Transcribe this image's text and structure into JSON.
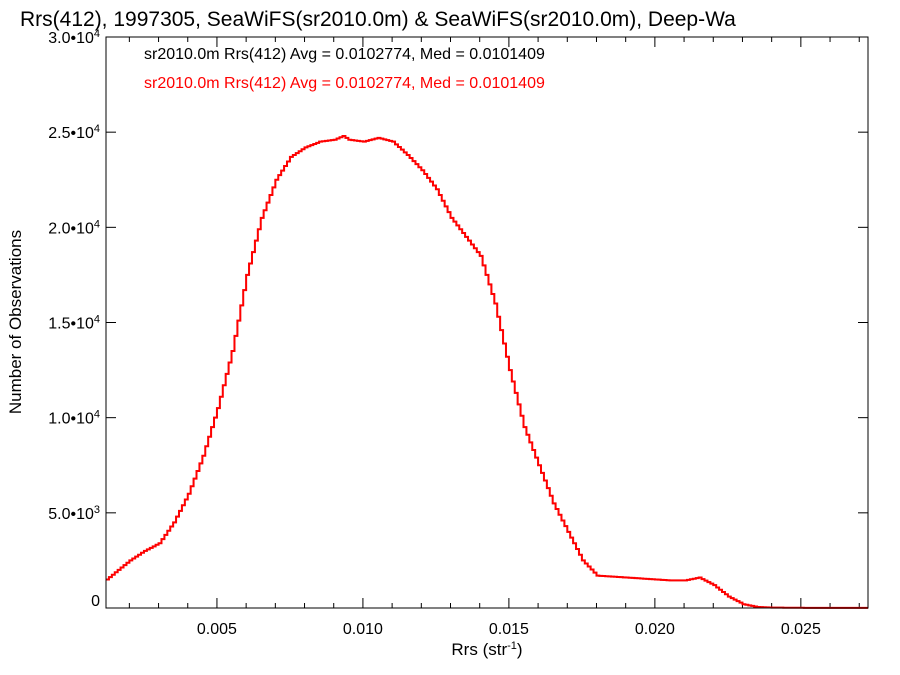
{
  "chart_data": {
    "type": "line",
    "title": "Rrs(412), 1997305, SeaWiFS(sr2010.0m) & SeaWiFS(sr2010.0m), Deep-Wa",
    "xlabel": {
      "base": "Rrs (str",
      "sup": "-1",
      "close": ")"
    },
    "ylabel": "Number of Observations",
    "xlim": [
      0.0012,
      0.0273
    ],
    "ylim": [
      0,
      30000
    ],
    "x_ticks": [
      {
        "value": 0.005,
        "label": "0.005"
      },
      {
        "value": 0.01,
        "label": "0.010"
      },
      {
        "value": 0.015,
        "label": "0.015"
      },
      {
        "value": 0.02,
        "label": "0.020"
      },
      {
        "value": 0.025,
        "label": "0.025"
      }
    ],
    "y_ticks": [
      {
        "value": 0,
        "label": "0",
        "exp": ""
      },
      {
        "value": 5000,
        "label": "5.0•10",
        "exp": "3"
      },
      {
        "value": 10000,
        "label": "1.0•10",
        "exp": "4"
      },
      {
        "value": 15000,
        "label": "1.5•10",
        "exp": "4"
      },
      {
        "value": 20000,
        "label": "2.0•10",
        "exp": "4"
      },
      {
        "value": 25000,
        "label": "2.5•10",
        "exp": "4"
      },
      {
        "value": 30000,
        "label": "3.0•10",
        "exp": "4"
      }
    ],
    "grid": false,
    "legend_position": "top-left",
    "series": [
      {
        "label": "sr2010.0m Rrs(412) Avg = 0.0102774, Med = 0.0101409",
        "color": "#000000",
        "x": [
          0.0012,
          0.002,
          0.0025,
          0.003,
          0.0035,
          0.004,
          0.0045,
          0.005,
          0.0055,
          0.006,
          0.0065,
          0.007,
          0.0075,
          0.008,
          0.0085,
          0.009,
          0.0093,
          0.0095,
          0.01,
          0.0105,
          0.011,
          0.0115,
          0.012,
          0.0125,
          0.013,
          0.0135,
          0.014,
          0.0145,
          0.015,
          0.0155,
          0.016,
          0.0165,
          0.017,
          0.0175,
          0.018,
          0.0185,
          0.019,
          0.0195,
          0.02,
          0.0205,
          0.021,
          0.0215,
          0.022,
          0.0225,
          0.023,
          0.0235,
          0.024,
          0.025,
          0.026,
          0.0273
        ],
        "y": [
          1500,
          2500,
          3000,
          3400,
          4500,
          6000,
          8000,
          10500,
          13500,
          17500,
          20500,
          22500,
          23700,
          24200,
          24500,
          24600,
          24800,
          24600,
          24500,
          24700,
          24500,
          23800,
          23000,
          22000,
          20500,
          19500,
          18500,
          16000,
          12500,
          9500,
          7500,
          5500,
          4000,
          2500,
          1700,
          1650,
          1600,
          1550,
          1500,
          1450,
          1450,
          1600,
          1200,
          600,
          200,
          50,
          20,
          10,
          5,
          5
        ]
      },
      {
        "label": "sr2010.0m Rrs(412) Avg = 0.0102774, Med = 0.0101409",
        "color": "#ff0000",
        "x": [
          0.0012,
          0.002,
          0.0025,
          0.003,
          0.0035,
          0.004,
          0.0045,
          0.005,
          0.0055,
          0.006,
          0.0065,
          0.007,
          0.0075,
          0.008,
          0.0085,
          0.009,
          0.0093,
          0.0095,
          0.01,
          0.0105,
          0.011,
          0.0115,
          0.012,
          0.0125,
          0.013,
          0.0135,
          0.014,
          0.0145,
          0.015,
          0.0155,
          0.016,
          0.0165,
          0.017,
          0.0175,
          0.018,
          0.0185,
          0.019,
          0.0195,
          0.02,
          0.0205,
          0.021,
          0.0215,
          0.022,
          0.0225,
          0.023,
          0.0235,
          0.024,
          0.025,
          0.026,
          0.0273
        ],
        "y": [
          1500,
          2500,
          3000,
          3400,
          4500,
          6000,
          8000,
          10500,
          13500,
          17500,
          20500,
          22500,
          23700,
          24200,
          24500,
          24600,
          24800,
          24600,
          24500,
          24700,
          24500,
          23800,
          23000,
          22000,
          20500,
          19500,
          18500,
          16000,
          12500,
          9500,
          7500,
          5500,
          4000,
          2500,
          1700,
          1650,
          1600,
          1550,
          1500,
          1450,
          1450,
          1600,
          1200,
          600,
          200,
          50,
          20,
          10,
          5,
          5
        ]
      }
    ]
  }
}
